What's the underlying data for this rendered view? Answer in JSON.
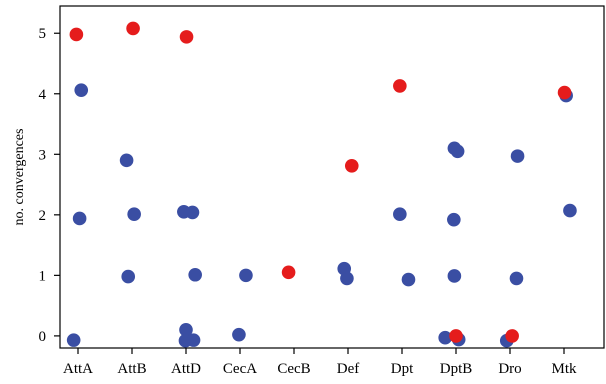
{
  "chart_data": {
    "type": "scatter",
    "title": "",
    "xlabel": "",
    "ylabel": "no. convergences",
    "ylim": [
      -0.2,
      5.45
    ],
    "yticks": [
      0,
      1,
      2,
      3,
      4,
      5
    ],
    "categories": [
      "AttA",
      "AttB",
      "AttD",
      "CecA",
      "CecB",
      "Def",
      "Dpt",
      "DptB",
      "Dro",
      "Mtk"
    ],
    "grid": false,
    "legend": "none",
    "colors": {
      "blue": "#3a4ea3",
      "red": "#e51c1c"
    },
    "points": [
      {
        "category": "AttA",
        "y": 4.98,
        "color": "red",
        "jitter": -0.03
      },
      {
        "category": "AttA",
        "y": 4.06,
        "color": "blue",
        "jitter": 0.06
      },
      {
        "category": "AttA",
        "y": 1.94,
        "color": "blue",
        "jitter": 0.03
      },
      {
        "category": "AttA",
        "y": -0.07,
        "color": "blue",
        "jitter": -0.08
      },
      {
        "category": "AttB",
        "y": 5.08,
        "color": "red",
        "jitter": 0.02
      },
      {
        "category": "AttB",
        "y": 2.9,
        "color": "blue",
        "jitter": -0.1
      },
      {
        "category": "AttB",
        "y": 2.01,
        "color": "blue",
        "jitter": 0.04
      },
      {
        "category": "AttB",
        "y": 0.98,
        "color": "blue",
        "jitter": -0.07
      },
      {
        "category": "AttD",
        "y": 4.94,
        "color": "red",
        "jitter": 0.01
      },
      {
        "category": "AttD",
        "y": 2.05,
        "color": "blue",
        "jitter": -0.04
      },
      {
        "category": "AttD",
        "y": 2.04,
        "color": "blue",
        "jitter": 0.12
      },
      {
        "category": "AttD",
        "y": 1.01,
        "color": "blue",
        "jitter": 0.17
      },
      {
        "category": "AttD",
        "y": 0.1,
        "color": "blue",
        "jitter": 0.0
      },
      {
        "category": "AttD",
        "y": -0.08,
        "color": "blue",
        "jitter": -0.01
      },
      {
        "category": "AttD",
        "y": -0.07,
        "color": "blue",
        "jitter": 0.14
      },
      {
        "category": "CecA",
        "y": 1.0,
        "color": "blue",
        "jitter": 0.11
      },
      {
        "category": "CecA",
        "y": 0.02,
        "color": "blue",
        "jitter": -0.02
      },
      {
        "category": "CecB",
        "y": 1.05,
        "color": "red",
        "jitter": -0.1
      },
      {
        "category": "Def",
        "y": 2.81,
        "color": "red",
        "jitter": 0.07
      },
      {
        "category": "Def",
        "y": 1.11,
        "color": "blue",
        "jitter": -0.07
      },
      {
        "category": "Def",
        "y": 0.95,
        "color": "blue",
        "jitter": -0.02
      },
      {
        "category": "Dpt",
        "y": 4.13,
        "color": "red",
        "jitter": -0.04
      },
      {
        "category": "Dpt",
        "y": 2.01,
        "color": "blue",
        "jitter": -0.04
      },
      {
        "category": "Dpt",
        "y": 0.93,
        "color": "blue",
        "jitter": 0.12
      },
      {
        "category": "DptB",
        "y": 3.1,
        "color": "blue",
        "jitter": -0.03
      },
      {
        "category": "DptB",
        "y": 3.05,
        "color": "blue",
        "jitter": 0.03
      },
      {
        "category": "DptB",
        "y": 1.92,
        "color": "blue",
        "jitter": -0.04
      },
      {
        "category": "DptB",
        "y": 0.99,
        "color": "blue",
        "jitter": -0.03
      },
      {
        "category": "DptB",
        "y": -0.03,
        "color": "blue",
        "jitter": -0.2
      },
      {
        "category": "DptB",
        "y": -0.06,
        "color": "blue",
        "jitter": 0.05
      },
      {
        "category": "DptB",
        "y": 0.0,
        "color": "red",
        "jitter": 0.0
      },
      {
        "category": "Dro",
        "y": 2.97,
        "color": "blue",
        "jitter": 0.14
      },
      {
        "category": "Dro",
        "y": 0.95,
        "color": "blue",
        "jitter": 0.12
      },
      {
        "category": "Dro",
        "y": -0.08,
        "color": "blue",
        "jitter": -0.06
      },
      {
        "category": "Dro",
        "y": 0.0,
        "color": "red",
        "jitter": 0.04
      },
      {
        "category": "Mtk",
        "y": 4.02,
        "color": "red",
        "jitter": 0.01
      },
      {
        "category": "Mtk",
        "y": 3.97,
        "color": "blue",
        "jitter": 0.04
      },
      {
        "category": "Mtk",
        "y": 2.07,
        "color": "blue",
        "jitter": 0.11
      }
    ]
  }
}
